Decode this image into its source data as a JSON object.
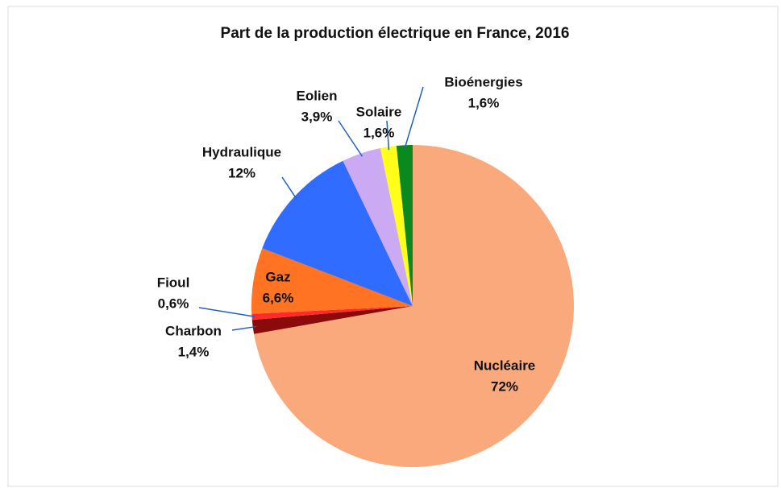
{
  "chart_data": {
    "type": "pie",
    "title": "Part de la production électrique en France, 2016",
    "categories": [
      "Nucléaire",
      "Charbon",
      "Fioul",
      "Gaz",
      "Hydraulique",
      "Eolien",
      "Solaire",
      "Bioénergies"
    ],
    "values": [
      72,
      1.4,
      0.6,
      6.6,
      12,
      3.9,
      1.6,
      1.6
    ],
    "value_labels": [
      "72%",
      "1,4%",
      "0,6%",
      "6,6%",
      "12%",
      "3,9%",
      "1,6%",
      "1,6%"
    ],
    "colors": [
      "#f9a97c",
      "#8b0a0a",
      "#ff2b2b",
      "#ff7322",
      "#2f6cff",
      "#cba9f3",
      "#ffff1a",
      "#0a8a1e"
    ]
  }
}
